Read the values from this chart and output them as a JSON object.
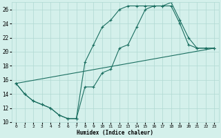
{
  "xlabel": "Humidex (Indice chaleur)",
  "bg_color": "#d4f0eb",
  "line_color": "#1a6e60",
  "grid_major_color": "#b0d8d2",
  "grid_minor_color": "#c8eae5",
  "xlim": [
    -0.5,
    23.5
  ],
  "ylim": [
    10,
    27
  ],
  "xticks": [
    0,
    1,
    2,
    3,
    4,
    5,
    6,
    7,
    8,
    9,
    10,
    11,
    12,
    13,
    14,
    15,
    16,
    17,
    18,
    19,
    20,
    21,
    22,
    23
  ],
  "yticks": [
    10,
    12,
    14,
    16,
    18,
    20,
    22,
    24,
    26
  ],
  "line1_x": [
    0,
    1,
    2,
    3,
    4,
    5,
    6,
    7,
    8,
    9,
    10,
    11,
    12,
    13,
    14,
    15,
    16,
    17,
    18,
    19,
    20,
    21,
    22,
    23
  ],
  "line1_y": [
    15.5,
    14.0,
    13.0,
    12.5,
    12.0,
    11.0,
    10.5,
    10.5,
    18.5,
    21.0,
    23.5,
    24.5,
    26.0,
    26.5,
    26.5,
    26.5,
    26.5,
    26.5,
    26.5,
    24.0,
    21.0,
    20.5,
    20.5,
    20.5
  ],
  "line2_x": [
    0,
    1,
    2,
    3,
    4,
    5,
    6,
    7,
    8,
    9,
    10,
    11,
    12,
    13,
    14,
    15,
    16,
    17,
    18,
    19,
    20,
    21,
    22,
    23
  ],
  "line2_y": [
    15.5,
    14.0,
    13.0,
    12.5,
    12.0,
    11.0,
    10.5,
    10.5,
    15.0,
    15.0,
    17.0,
    17.5,
    20.5,
    21.0,
    23.5,
    26.0,
    26.5,
    26.5,
    27.0,
    24.5,
    22.0,
    20.5,
    20.5,
    20.5
  ],
  "line3_x": [
    0,
    23
  ],
  "line3_y": [
    15.5,
    20.5
  ]
}
